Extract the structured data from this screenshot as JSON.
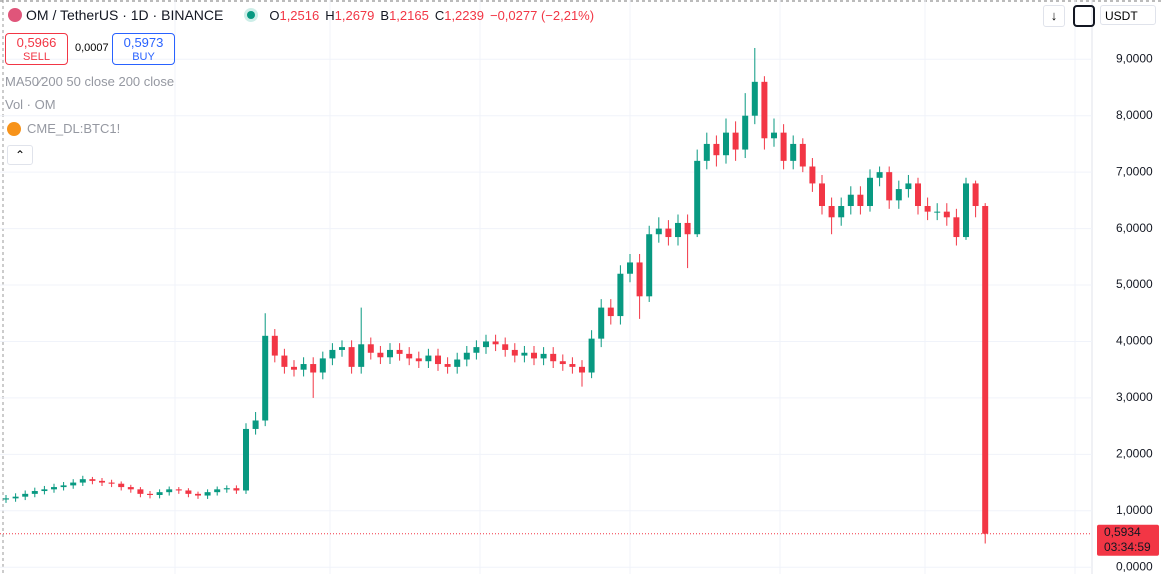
{
  "header": {
    "symbol": "OM / TetherUS · 1D · BINANCE",
    "ohlc": [
      {
        "key": "O",
        "value": "1,2516"
      },
      {
        "key": "H",
        "value": "1,2679"
      },
      {
        "key": "B",
        "value": "1,2165"
      },
      {
        "key": "C",
        "value": "1,2239"
      }
    ],
    "change": "−0,0277 (−2,21%)"
  },
  "trade": {
    "sell_price": "0,5966",
    "sell": "SELL",
    "spread": "0,0007",
    "buy_price": "0,5973",
    "buy": "BUY"
  },
  "indicators": [
    "MA50⁄200 50 close 200 close",
    "Vol · OM",
    "CME_DL:BTC1!"
  ],
  "currency": "USDT",
  "chart_data": {
    "type": "candlestick",
    "up_color": "#089981",
    "down_color": "#f23645",
    "grid": true,
    "ylim": [
      -0.12,
      10.05
    ],
    "yticks": [
      {
        "value": 0,
        "label": "0,0000"
      },
      {
        "value": 1,
        "label": "1,0000"
      },
      {
        "value": 2,
        "label": "2,0000"
      },
      {
        "value": 3,
        "label": "3,0000"
      },
      {
        "value": 4,
        "label": "4,0000"
      },
      {
        "value": 5,
        "label": "5,0000"
      },
      {
        "value": 6,
        "label": "6,0000"
      },
      {
        "value": 7,
        "label": "7,0000"
      },
      {
        "value": 8,
        "label": "8,0000"
      },
      {
        "value": 9,
        "label": "9,0000"
      }
    ],
    "open": [
      1.2,
      1.22,
      1.25,
      1.3,
      1.35,
      1.38,
      1.42,
      1.45,
      1.5,
      1.56,
      1.53,
      1.5,
      1.48,
      1.42,
      1.38,
      1.3,
      1.28,
      1.33,
      1.38,
      1.36,
      1.3,
      1.27,
      1.33,
      1.38,
      1.4,
      1.36,
      2.45,
      2.6,
      4.1,
      3.75,
      3.55,
      3.5,
      3.6,
      3.45,
      3.7,
      3.85,
      3.9,
      3.55,
      3.95,
      3.8,
      3.72,
      3.85,
      3.78,
      3.7,
      3.65,
      3.75,
      3.6,
      3.55,
      3.68,
      3.8,
      3.9,
      4.0,
      3.95,
      3.85,
      3.75,
      3.8,
      3.7,
      3.78,
      3.65,
      3.6,
      3.55,
      3.45,
      4.05,
      4.6,
      4.45,
      5.2,
      5.4,
      4.8,
      5.9,
      6.0,
      5.85,
      6.1,
      5.9,
      7.2,
      7.5,
      7.3,
      7.7,
      7.4,
      8.0,
      8.6,
      7.6,
      7.7,
      7.2,
      7.5,
      7.1,
      6.8,
      6.4,
      6.2,
      6.4,
      6.6,
      6.4,
      6.9,
      7.0,
      6.5,
      6.7,
      6.8,
      6.4,
      6.3,
      6.3,
      6.2,
      5.85,
      6.8,
      6.4
    ],
    "high": [
      1.28,
      1.31,
      1.36,
      1.41,
      1.44,
      1.48,
      1.51,
      1.56,
      1.62,
      1.6,
      1.58,
      1.55,
      1.52,
      1.46,
      1.42,
      1.35,
      1.38,
      1.43,
      1.42,
      1.4,
      1.34,
      1.38,
      1.43,
      1.45,
      1.45,
      2.55,
      2.75,
      4.5,
      4.22,
      3.87,
      3.67,
      3.72,
      3.72,
      3.82,
      3.97,
      4.02,
      4.02,
      4.6,
      4.07,
      3.92,
      3.97,
      3.97,
      3.9,
      3.82,
      3.87,
      3.87,
      3.72,
      3.8,
      3.92,
      4.02,
      4.12,
      4.12,
      4.07,
      3.97,
      3.92,
      3.92,
      3.9,
      3.9,
      3.77,
      3.72,
      3.67,
      4.2,
      4.75,
      4.75,
      5.35,
      5.55,
      5.55,
      6.05,
      6.2,
      6.15,
      6.25,
      6.25,
      7.4,
      7.7,
      7.65,
      7.95,
      7.9,
      8.4,
      9.2,
      8.7,
      7.95,
      7.85,
      7.65,
      7.6,
      7.25,
      6.95,
      6.55,
      6.55,
      6.75,
      6.75,
      7.05,
      7.1,
      7.1,
      6.85,
      6.95,
      6.9,
      6.55,
      6.45,
      6.45,
      6.35,
      6.9,
      6.85,
      6.45
    ],
    "low": [
      1.14,
      1.16,
      1.19,
      1.24,
      1.29,
      1.32,
      1.36,
      1.39,
      1.44,
      1.47,
      1.44,
      1.42,
      1.36,
      1.32,
      1.24,
      1.22,
      1.22,
      1.27,
      1.3,
      1.24,
      1.21,
      1.21,
      1.27,
      1.32,
      1.3,
      1.3,
      2.35,
      2.5,
      3.63,
      3.43,
      3.38,
      3.38,
      3.0,
      3.33,
      3.58,
      3.73,
      3.43,
      3.43,
      3.68,
      3.6,
      3.6,
      3.66,
      3.58,
      3.53,
      3.53,
      3.48,
      3.43,
      3.43,
      3.56,
      3.68,
      3.78,
      3.83,
      3.73,
      3.63,
      3.63,
      3.58,
      3.58,
      3.53,
      3.48,
      3.43,
      3.2,
      3.35,
      3.9,
      4.3,
      4.3,
      5.05,
      4.4,
      4.7,
      5.75,
      5.7,
      5.7,
      5.3,
      5.85,
      7.05,
      7.1,
      7.15,
      7.2,
      7.25,
      7.85,
      7.4,
      7.45,
      7.05,
      7.05,
      7.0,
      6.65,
      6.25,
      5.9,
      6.05,
      6.25,
      6.25,
      6.3,
      6.75,
      6.35,
      6.35,
      6.55,
      6.25,
      6.15,
      6.15,
      6.05,
      5.7,
      5.8,
      6.2,
      0.42
    ],
    "close": [
      1.22,
      1.25,
      1.3,
      1.35,
      1.38,
      1.42,
      1.45,
      1.5,
      1.56,
      1.53,
      1.5,
      1.48,
      1.42,
      1.38,
      1.3,
      1.28,
      1.33,
      1.38,
      1.36,
      1.3,
      1.27,
      1.33,
      1.38,
      1.4,
      1.36,
      2.45,
      2.6,
      4.1,
      3.75,
      3.55,
      3.5,
      3.6,
      3.45,
      3.7,
      3.85,
      3.9,
      3.55,
      3.95,
      3.8,
      3.72,
      3.85,
      3.78,
      3.7,
      3.65,
      3.75,
      3.6,
      3.55,
      3.68,
      3.8,
      3.9,
      4.0,
      3.95,
      3.85,
      3.75,
      3.8,
      3.7,
      3.78,
      3.65,
      3.6,
      3.55,
      3.45,
      4.05,
      4.6,
      4.45,
      5.2,
      5.4,
      4.8,
      5.9,
      6.0,
      5.85,
      6.1,
      5.9,
      7.2,
      7.5,
      7.3,
      7.7,
      7.4,
      8.0,
      8.6,
      7.6,
      7.7,
      7.2,
      7.5,
      7.1,
      6.8,
      6.4,
      6.2,
      6.4,
      6.6,
      6.4,
      6.9,
      7.0,
      6.5,
      6.7,
      6.8,
      6.4,
      6.3,
      6.3,
      6.2,
      5.85,
      6.8,
      6.4,
      0.5934
    ],
    "last_label": "0,5934",
    "countdown": "03:34:59"
  }
}
